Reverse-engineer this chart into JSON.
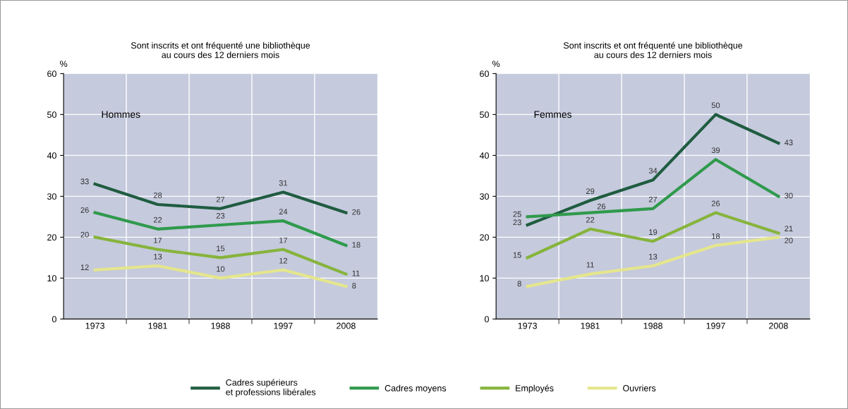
{
  "chart_data": [
    {
      "type": "line",
      "title": "Sont inscrits et ont fréquenté une bibliothèque\nau cours des 12 derniers mois",
      "ylabel": "%",
      "annotations": [
        "Hommes"
      ],
      "categories": [
        "1973",
        "1981",
        "1988",
        "1997",
        "2008"
      ],
      "ylim": [
        0,
        60
      ],
      "yticks": [
        0,
        10,
        20,
        30,
        40,
        50,
        60
      ],
      "grid": true,
      "data_labels": true,
      "legend": "bottom",
      "marker": "none",
      "line_style": "solid",
      "series": [
        {
          "name": "Cadres supérieurs\net professions libérales",
          "color": "#1f5c40",
          "values": [
            33,
            28,
            27,
            31,
            26
          ]
        },
        {
          "name": "Cadres moyens",
          "color": "#2f9a4c",
          "values": [
            26,
            22,
            23,
            24,
            18
          ]
        },
        {
          "name": "Employés",
          "color": "#86b43c",
          "values": [
            20,
            17,
            15,
            17,
            11
          ]
        },
        {
          "name": "Ouvriers",
          "color": "#e4e68c",
          "values": [
            12,
            13,
            10,
            12,
            8
          ]
        }
      ]
    },
    {
      "type": "line",
      "title": "Sont inscrits et ont fréquenté une bibliothèque\nau cours des 12 derniers mois",
      "ylabel": "%",
      "annotations": [
        "Femmes"
      ],
      "categories": [
        "1973",
        "1981",
        "1988",
        "1997",
        "2008"
      ],
      "ylim": [
        0,
        60
      ],
      "yticks": [
        0,
        10,
        20,
        30,
        40,
        50,
        60
      ],
      "grid": true,
      "data_labels": true,
      "marker": "none",
      "line_style": "solid",
      "series": [
        {
          "name": "Cadres supérieurs\net professions libérales",
          "color": "#1f5c40",
          "values": [
            23,
            29,
            34,
            50,
            43
          ]
        },
        {
          "name": "Cadres moyens",
          "color": "#2f9a4c",
          "values": [
            25,
            26,
            27,
            39,
            30
          ]
        },
        {
          "name": "Employés",
          "color": "#86b43c",
          "values": [
            15,
            22,
            19,
            26,
            21
          ]
        },
        {
          "name": "Ouvriers",
          "color": "#e4e68c",
          "values": [
            8,
            11,
            13,
            18,
            20
          ]
        }
      ]
    }
  ]
}
